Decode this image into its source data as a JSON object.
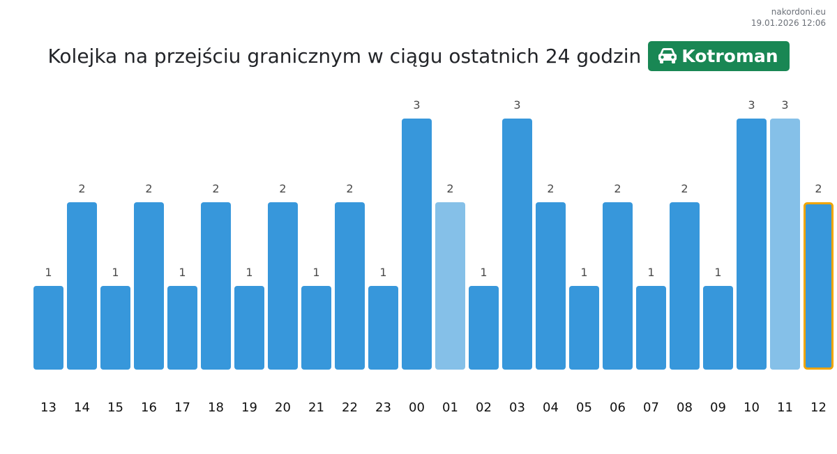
{
  "source": {
    "site": "nakordoni.eu",
    "timestamp": "19.01.2026 12:06"
  },
  "header": {
    "title": "Kolejka na przejściu granicznym w ciągu ostatnich 24 godzin",
    "badge_label": "Kotroman",
    "badge_icon": "car-icon"
  },
  "colors": {
    "bar": "#3797db",
    "bar_light": "#85c0e8",
    "highlight_border": "#f0a500",
    "badge": "#198754"
  },
  "chart_data": {
    "type": "bar",
    "title": "Kolejka na przejściu granicznym w ciągu ostatnich 24 godzin",
    "xlabel": "",
    "ylabel": "",
    "ylim": [
      0,
      3
    ],
    "grid": false,
    "categories": [
      "13",
      "14",
      "15",
      "16",
      "17",
      "18",
      "19",
      "20",
      "21",
      "22",
      "23",
      "00",
      "01",
      "02",
      "03",
      "04",
      "05",
      "06",
      "07",
      "08",
      "09",
      "10",
      "11",
      "12"
    ],
    "values": [
      1,
      2,
      1,
      2,
      1,
      2,
      1,
      2,
      1,
      2,
      1,
      3,
      2,
      1,
      3,
      2,
      1,
      2,
      1,
      2,
      1,
      3,
      3,
      2
    ],
    "light_bars": [
      "01",
      "11"
    ],
    "highlighted_bar": "12"
  }
}
